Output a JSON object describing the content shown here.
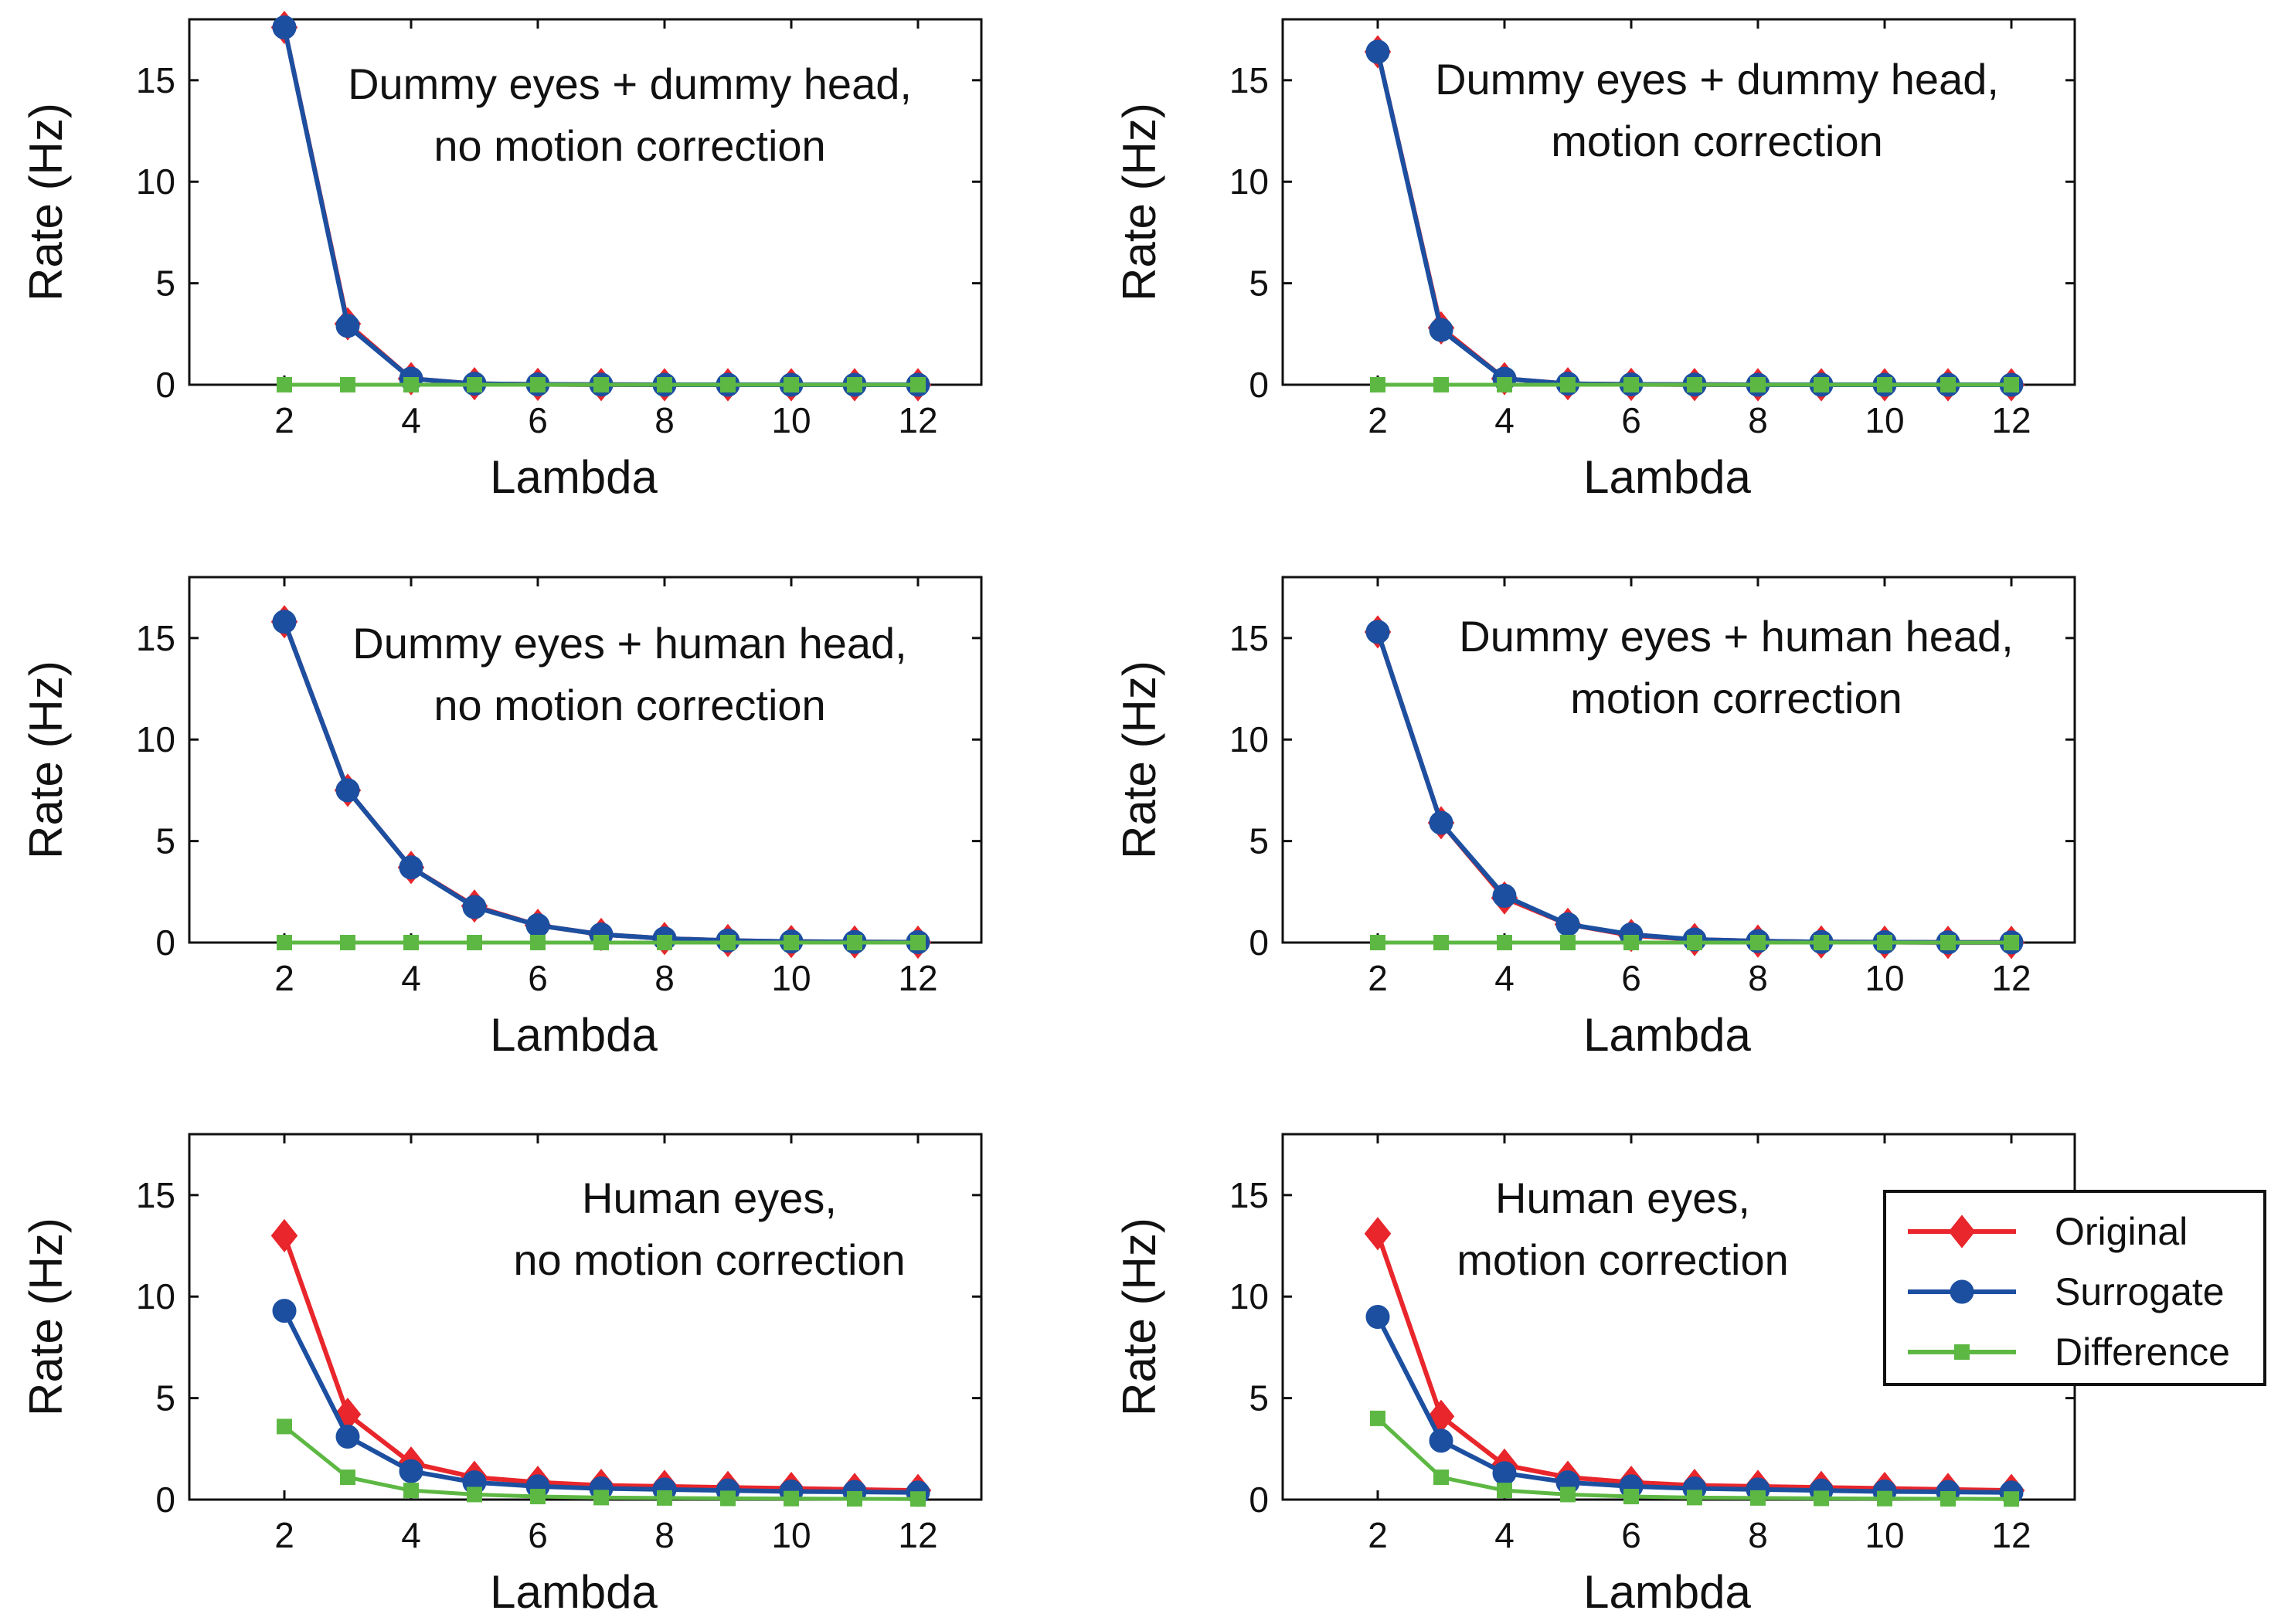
{
  "colors": {
    "original": "#e8262b",
    "surrogate": "#1c4fa0",
    "difference": "#5db843",
    "axis": "#111111"
  },
  "legend": {
    "placement": "right of bottom-right panel",
    "entries": [
      {
        "key": "original",
        "label": "Original",
        "marker": "diamond"
      },
      {
        "key": "surrogate",
        "label": "Surrogate",
        "marker": "circle"
      },
      {
        "key": "difference",
        "label": "Difference",
        "marker": "square"
      }
    ]
  },
  "chart_data": [
    {
      "type": "line",
      "annotation": [
        "Dummy eyes + dummy head,",
        "no motion correction"
      ],
      "xlabel": "Lambda",
      "ylabel": "Rate (Hz)",
      "xlim": [
        0.5,
        13
      ],
      "ylim": [
        0,
        18
      ],
      "xticks": [
        2,
        4,
        6,
        8,
        10,
        12
      ],
      "yticks": [
        0,
        5,
        10,
        15
      ],
      "x": [
        2,
        3,
        4,
        5,
        6,
        7,
        8,
        9,
        10,
        11,
        12
      ],
      "series": [
        {
          "key": "original",
          "values": [
            17.6,
            3.0,
            0.3,
            0.05,
            0.02,
            0.01,
            0.0,
            0.0,
            0.0,
            0.0,
            0.0
          ]
        },
        {
          "key": "surrogate",
          "values": [
            17.6,
            2.9,
            0.3,
            0.05,
            0.02,
            0.01,
            0.0,
            0.0,
            0.0,
            0.0,
            0.0
          ]
        },
        {
          "key": "difference",
          "values": [
            0.0,
            0.0,
            0.0,
            0.0,
            0.0,
            0.0,
            0.0,
            0.0,
            0.0,
            0.0,
            0.0
          ]
        }
      ]
    },
    {
      "type": "line",
      "annotation": [
        "Dummy eyes + dummy head,",
        "motion correction"
      ],
      "xlabel": "Lambda",
      "ylabel": "Rate (Hz)",
      "xlim": [
        0.5,
        13
      ],
      "ylim": [
        0,
        18
      ],
      "xticks": [
        2,
        4,
        6,
        8,
        10,
        12
      ],
      "yticks": [
        0,
        5,
        10,
        15
      ],
      "x": [
        2,
        3,
        4,
        5,
        6,
        7,
        8,
        9,
        10,
        11,
        12
      ],
      "series": [
        {
          "key": "original",
          "values": [
            16.4,
            2.8,
            0.3,
            0.05,
            0.02,
            0.01,
            0.0,
            0.0,
            0.0,
            0.0,
            0.0
          ]
        },
        {
          "key": "surrogate",
          "values": [
            16.4,
            2.7,
            0.3,
            0.05,
            0.02,
            0.01,
            0.0,
            0.0,
            0.0,
            0.0,
            0.0
          ]
        },
        {
          "key": "difference",
          "values": [
            0.0,
            0.0,
            0.0,
            0.0,
            0.0,
            0.0,
            0.0,
            0.0,
            0.0,
            0.0,
            0.0
          ]
        }
      ]
    },
    {
      "type": "line",
      "annotation": [
        "Dummy eyes + human head,",
        "no motion correction"
      ],
      "xlabel": "Lambda",
      "ylabel": "Rate (Hz)",
      "xlim": [
        0.5,
        13
      ],
      "ylim": [
        0,
        18
      ],
      "xticks": [
        2,
        4,
        6,
        8,
        10,
        12
      ],
      "yticks": [
        0,
        5,
        10,
        15
      ],
      "x": [
        2,
        3,
        4,
        5,
        6,
        7,
        8,
        9,
        10,
        11,
        12
      ],
      "series": [
        {
          "key": "original",
          "values": [
            15.8,
            7.5,
            3.7,
            1.8,
            0.85,
            0.4,
            0.2,
            0.1,
            0.05,
            0.03,
            0.02
          ]
        },
        {
          "key": "surrogate",
          "values": [
            15.8,
            7.5,
            3.7,
            1.75,
            0.85,
            0.4,
            0.2,
            0.1,
            0.05,
            0.03,
            0.02
          ]
        },
        {
          "key": "difference",
          "values": [
            0.0,
            0.0,
            0.0,
            0.0,
            0.0,
            0.0,
            0.0,
            0.0,
            0.0,
            0.0,
            0.0
          ]
        }
      ]
    },
    {
      "type": "line",
      "annotation": [
        "Dummy eyes + human head,",
        "motion correction"
      ],
      "xlabel": "Lambda",
      "ylabel": "Rate (Hz)",
      "xlim": [
        0.5,
        13
      ],
      "ylim": [
        0,
        18
      ],
      "xticks": [
        2,
        4,
        6,
        8,
        10,
        12
      ],
      "yticks": [
        0,
        5,
        10,
        15
      ],
      "x": [
        2,
        3,
        4,
        5,
        6,
        7,
        8,
        9,
        10,
        11,
        12
      ],
      "series": [
        {
          "key": "original",
          "values": [
            15.3,
            5.9,
            2.2,
            0.9,
            0.35,
            0.15,
            0.07,
            0.03,
            0.02,
            0.01,
            0.01
          ]
        },
        {
          "key": "surrogate",
          "values": [
            15.3,
            5.9,
            2.3,
            0.9,
            0.4,
            0.15,
            0.07,
            0.03,
            0.02,
            0.01,
            0.01
          ]
        },
        {
          "key": "difference",
          "values": [
            0.0,
            0.0,
            0.0,
            0.0,
            0.0,
            0.0,
            0.0,
            0.0,
            0.0,
            0.0,
            0.0
          ]
        }
      ]
    },
    {
      "type": "line",
      "annotation": [
        "Human eyes,",
        "no motion correction"
      ],
      "xlabel": "Lambda",
      "ylabel": "Rate (Hz)",
      "xlim": [
        0.5,
        13
      ],
      "ylim": [
        0,
        18
      ],
      "xticks": [
        2,
        4,
        6,
        8,
        10,
        12
      ],
      "yticks": [
        0,
        5,
        10,
        15
      ],
      "x": [
        2,
        3,
        4,
        5,
        6,
        7,
        8,
        9,
        10,
        11,
        12
      ],
      "series": [
        {
          "key": "original",
          "values": [
            13.0,
            4.2,
            1.8,
            1.1,
            0.85,
            0.7,
            0.65,
            0.6,
            0.55,
            0.5,
            0.45
          ]
        },
        {
          "key": "surrogate",
          "values": [
            9.3,
            3.1,
            1.4,
            0.85,
            0.65,
            0.55,
            0.5,
            0.45,
            0.4,
            0.38,
            0.35
          ]
        },
        {
          "key": "difference",
          "values": [
            3.6,
            1.1,
            0.45,
            0.25,
            0.15,
            0.1,
            0.08,
            0.06,
            0.05,
            0.04,
            0.03
          ]
        }
      ]
    },
    {
      "type": "line",
      "annotation": [
        "Human eyes,",
        "motion correction"
      ],
      "xlabel": "Lambda",
      "ylabel": "Rate (Hz)",
      "xlim": [
        0.5,
        13
      ],
      "ylim": [
        0,
        18
      ],
      "xticks": [
        2,
        4,
        6,
        8,
        10,
        12
      ],
      "yticks": [
        0,
        5,
        10,
        15
      ],
      "x": [
        2,
        3,
        4,
        5,
        6,
        7,
        8,
        9,
        10,
        11,
        12
      ],
      "series": [
        {
          "key": "original",
          "values": [
            13.1,
            4.1,
            1.7,
            1.1,
            0.85,
            0.7,
            0.65,
            0.6,
            0.55,
            0.5,
            0.45
          ]
        },
        {
          "key": "surrogate",
          "values": [
            9.0,
            2.9,
            1.3,
            0.85,
            0.65,
            0.55,
            0.5,
            0.45,
            0.4,
            0.38,
            0.35
          ]
        },
        {
          "key": "difference",
          "values": [
            4.0,
            1.1,
            0.45,
            0.25,
            0.15,
            0.1,
            0.08,
            0.06,
            0.05,
            0.04,
            0.03
          ]
        }
      ]
    }
  ]
}
